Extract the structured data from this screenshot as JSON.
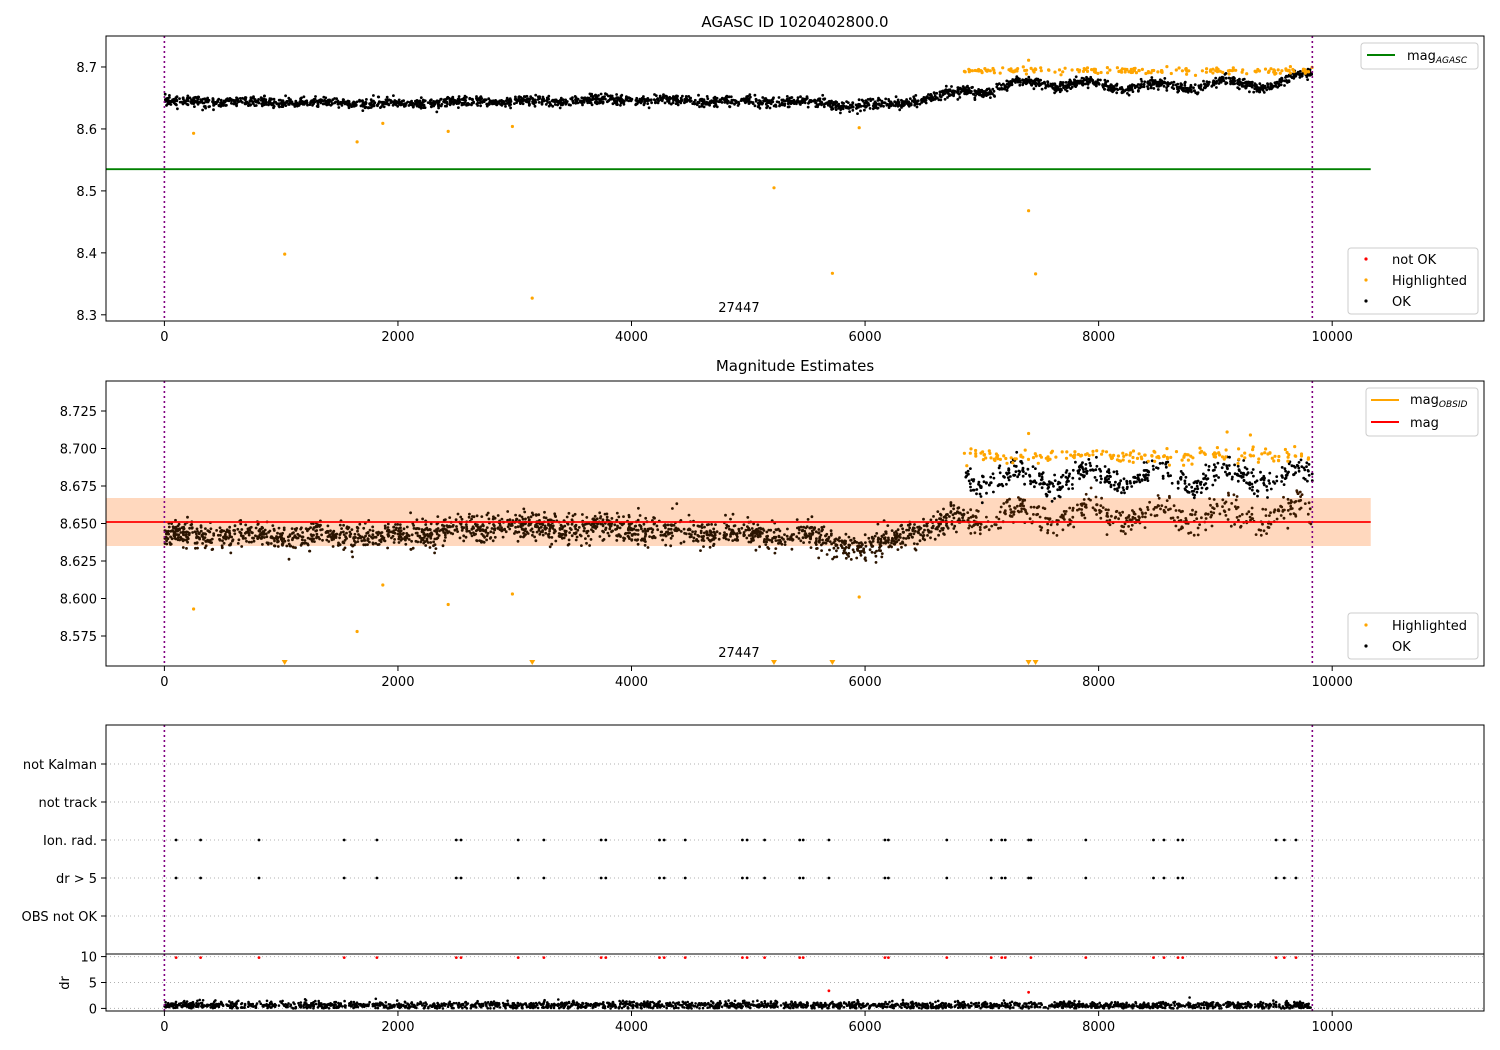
{
  "chart_data": [
    {
      "type": "scatter",
      "title": "AGASC ID 1020402800.0",
      "xlim": [
        -500,
        11300
      ],
      "ylim": [
        8.29,
        8.75
      ],
      "x_ticks": [
        0,
        2000,
        4000,
        6000,
        8000,
        10000
      ],
      "y_ticks": [
        8.3,
        8.4,
        8.5,
        8.6,
        8.7
      ],
      "y_tick_labels": [
        "8.3",
        "8.4",
        "8.5",
        "8.6",
        "8.7"
      ],
      "vlines": [
        0,
        9830
      ],
      "obsid_label": {
        "x": 4920,
        "text": "27447"
      },
      "hline": {
        "name": "mag_AGASC",
        "y": 8.535,
        "x_range": [
          -500,
          10330
        ],
        "color": "#008000"
      },
      "series": [
        {
          "name": "OK",
          "color": "#000000",
          "segments": [
            {
              "x": [
                0,
                2000,
                4000,
                5500,
                6000,
                6500,
                6850,
                7100,
                7500,
                8000,
                8500,
                9000,
                9500,
                9830
              ],
              "y": [
                8.645,
                8.641,
                8.647,
                8.643,
                8.636,
                8.648,
                8.662,
                8.665,
                8.675,
                8.67,
                8.668,
                8.672,
                8.673,
                8.686
              ],
              "spread": 0.008
            }
          ]
        },
        {
          "name": "Highlighted",
          "color": "#ffa500",
          "points": [
            [
              250,
              8.593
            ],
            [
              1650,
              8.579
            ],
            [
              1870,
              8.609
            ],
            [
              2430,
              8.596
            ],
            [
              2980,
              8.604
            ],
            [
              5950,
              8.602
            ],
            [
              5220,
              8.505
            ],
            [
              7400,
              8.468
            ],
            [
              1030,
              8.398
            ],
            [
              5720,
              8.367
            ],
            [
              7460,
              8.366
            ],
            [
              3150,
              8.327
            ],
            [
              7400,
              8.711
            ]
          ],
          "band": {
            "x_range": [
              6850,
              9830
            ],
            "y": 8.694,
            "spread": 0.005,
            "count": 180
          }
        },
        {
          "name": "not OK",
          "color": "#ff0000",
          "points": []
        }
      ],
      "legends": [
        {
          "position": "top-right",
          "entries": [
            {
              "marker": "line",
              "color": "#008000",
              "label": "mag",
              "sub": "AGASC"
            }
          ]
        },
        {
          "position": "bottom-right",
          "entries": [
            {
              "marker": "dot",
              "color": "#ff0000",
              "label": "not OK"
            },
            {
              "marker": "dot",
              "color": "#ffa500",
              "label": "Highlighted"
            },
            {
              "marker": "dot",
              "color": "#000000",
              "label": "OK"
            }
          ]
        }
      ]
    },
    {
      "type": "scatter",
      "title": "Magnitude Estimates",
      "xlim": [
        -500,
        11300
      ],
      "ylim": [
        8.555,
        8.745
      ],
      "x_ticks": [
        0,
        2000,
        4000,
        6000,
        8000,
        10000
      ],
      "y_ticks": [
        8.575,
        8.6,
        8.625,
        8.65,
        8.675,
        8.7,
        8.725
      ],
      "y_tick_labels": [
        "8.575",
        "8.600",
        "8.625",
        "8.650",
        "8.675",
        "8.700",
        "8.725"
      ],
      "vlines": [
        0,
        9830
      ],
      "obsid_label": {
        "x": 4920,
        "text": "27447"
      },
      "mag": {
        "name": "mag",
        "y": 8.651,
        "band": [
          8.635,
          8.667
        ],
        "x_range": [
          -500,
          10330
        ],
        "color": "#ff0000"
      },
      "mag_obsid": {
        "name": "mag_OBSID",
        "y": 8.651,
        "band": [
          8.635,
          8.667
        ],
        "x_range": [
          -500,
          6500
        ],
        "color": "#ffa500"
      },
      "series": [
        {
          "name": "OK",
          "color": "#000000",
          "segments": [
            {
              "x": [
                0,
                2000,
                3000,
                4000,
                5500,
                6000,
                6500,
                6850
              ],
              "y": [
                8.642,
                8.642,
                8.648,
                8.646,
                8.641,
                8.634,
                8.646,
                8.655
              ],
              "spread": 0.009
            },
            {
              "x": [
                6850,
                9830
              ],
              "y": [
                8.68,
                8.682
              ],
              "spread": 0.008
            },
            {
              "x": [
                6850,
                9830
              ],
              "y": [
                8.655,
                8.656
              ],
              "spread": 0.009
            }
          ]
        },
        {
          "name": "Highlighted",
          "color": "#ffa500",
          "points": [
            [
              250,
              8.593
            ],
            [
              1650,
              8.578
            ],
            [
              1870,
              8.609
            ],
            [
              2430,
              8.596
            ],
            [
              2980,
              8.603
            ],
            [
              5950,
              8.601
            ],
            [
              7400,
              8.71
            ],
            [
              9100,
              8.711
            ],
            [
              9300,
              8.709
            ]
          ],
          "band": {
            "x_range": [
              6850,
              9830
            ],
            "y": 8.695,
            "spread": 0.005,
            "count": 180
          },
          "off_axis_below": [
            1030,
            3150,
            5220,
            5720,
            7400,
            7460
          ]
        }
      ],
      "legends": [
        {
          "position": "top-right",
          "entries": [
            {
              "marker": "line",
              "color": "#ffa500",
              "label": "mag",
              "sub": "OBSID"
            },
            {
              "marker": "line",
              "color": "#ff0000",
              "label": "mag"
            }
          ]
        },
        {
          "position": "bottom-right",
          "entries": [
            {
              "marker": "dot",
              "color": "#ffa500",
              "label": "Highlighted"
            },
            {
              "marker": "dot",
              "color": "#000000",
              "label": "OK"
            }
          ]
        }
      ]
    },
    {
      "type": "scatter",
      "xlim": [
        -500,
        11300
      ],
      "vlines": [
        0,
        9830
      ],
      "categories": [
        "not Kalman",
        "not track",
        "Ion. rad.",
        "dr > 5",
        "OBS not OK"
      ],
      "flag_rows": [
        {
          "category": "Ion. rad.",
          "x": [
            100,
            310,
            810,
            1540,
            1820,
            2500,
            2540,
            3030,
            3250,
            3740,
            3780,
            4240,
            4280,
            4460,
            4950,
            4990,
            5140,
            5440,
            5470,
            5690,
            6170,
            6200,
            6700,
            7080,
            7170,
            7200,
            7400,
            7420,
            7890,
            8470,
            8560,
            8680,
            8720,
            9520,
            9590,
            9690
          ]
        },
        {
          "category": "dr > 5",
          "x": [
            100,
            310,
            810,
            1540,
            1820,
            2500,
            2540,
            3030,
            3250,
            3740,
            3780,
            4240,
            4280,
            4460,
            4950,
            4990,
            5140,
            5440,
            5470,
            5690,
            6170,
            6200,
            6700,
            7080,
            7170,
            7200,
            7400,
            7420,
            7890,
            8470,
            8560,
            8680,
            8720,
            9520,
            9590,
            9690
          ]
        }
      ]
    },
    {
      "type": "scatter",
      "xlim": [
        -500,
        11300
      ],
      "ylim": [
        -0.5,
        10.5
      ],
      "ylabel": "dr",
      "x_ticks": [
        0,
        2000,
        4000,
        6000,
        8000,
        10000
      ],
      "y_ticks": [
        0,
        5,
        10
      ],
      "vlines": [
        0,
        9830
      ],
      "series": [
        {
          "name": "OK",
          "color": "#000000",
          "baseline": 0.6,
          "spread": 0.35
        },
        {
          "name": "not OK",
          "color": "#ff0000",
          "points": [
            [
              100,
              9.8
            ],
            [
              310,
              9.8
            ],
            [
              810,
              9.8
            ],
            [
              1540,
              9.8
            ],
            [
              1820,
              9.8
            ],
            [
              2500,
              9.8
            ],
            [
              2540,
              9.8
            ],
            [
              3030,
              9.8
            ],
            [
              3250,
              9.8
            ],
            [
              3740,
              9.8
            ],
            [
              3780,
              9.8
            ],
            [
              4240,
              9.8
            ],
            [
              4280,
              9.8
            ],
            [
              4460,
              9.8
            ],
            [
              4950,
              9.8
            ],
            [
              4990,
              9.8
            ],
            [
              5140,
              9.8
            ],
            [
              5440,
              9.8
            ],
            [
              5470,
              9.8
            ],
            [
              5690,
              3.4
            ],
            [
              6170,
              9.8
            ],
            [
              6200,
              9.8
            ],
            [
              6700,
              9.8
            ],
            [
              7080,
              9.8
            ],
            [
              7170,
              9.8
            ],
            [
              7200,
              9.8
            ],
            [
              7400,
              3.1
            ],
            [
              7420,
              9.8
            ],
            [
              7890,
              9.8
            ],
            [
              8470,
              9.8
            ],
            [
              8560,
              9.8
            ],
            [
              8680,
              9.8
            ],
            [
              8720,
              9.8
            ],
            [
              9520,
              9.8
            ],
            [
              9590,
              9.8
            ],
            [
              9690,
              9.8
            ]
          ]
        }
      ]
    }
  ]
}
